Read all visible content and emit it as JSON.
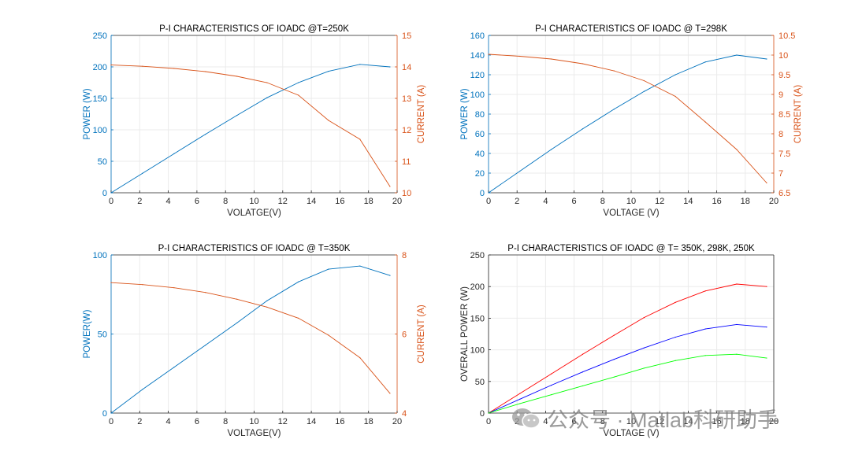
{
  "colors": {
    "left_axis": "#0072BD",
    "right_axis": "#D95319",
    "axis": "#262626",
    "grid": "#ebebeb",
    "series_250K": "#ff0000",
    "series_298K": "#0000ff",
    "series_350K": "#00ff00"
  },
  "watermark": {
    "text": "公众号 · Matlab科研助手",
    "icon": "wechat-icon"
  },
  "chart_data": [
    {
      "type": "line",
      "title": "P-I CHARACTERISTICS OF IOADC @T=250K",
      "xlabel": "VOLATGE(V)",
      "ylabel": "POWER (W)",
      "y2label": "CURRENT (A)",
      "xlim": [
        0,
        20
      ],
      "ylim": [
        0,
        250
      ],
      "y2lim": [
        10,
        15
      ],
      "xticks": [
        0,
        2,
        4,
        6,
        8,
        10,
        12,
        14,
        16,
        18,
        20
      ],
      "yticks": [
        0,
        50,
        100,
        150,
        200,
        250
      ],
      "y2ticks": [
        10,
        11,
        12,
        13,
        14,
        15
      ],
      "series": [
        {
          "name": "Power",
          "axis": "left",
          "x": [
            0,
            2.2,
            4.4,
            6.6,
            8.8,
            10.9,
            13.1,
            15.2,
            17.4,
            19.5
          ],
          "values": [
            0,
            31,
            62,
            93,
            123,
            151,
            175,
            193,
            204,
            200
          ]
        },
        {
          "name": "Current",
          "axis": "right",
          "x": [
            0,
            2.2,
            4.4,
            6.6,
            8.8,
            10.9,
            13.1,
            15.2,
            17.4,
            19.5
          ],
          "values": [
            14.06,
            14.02,
            13.95,
            13.85,
            13.7,
            13.5,
            13.1,
            12.3,
            11.7,
            10.2
          ]
        }
      ]
    },
    {
      "type": "line",
      "title": "P-I CHARACTERISTICS OF IOADC @ T=298K",
      "xlabel": "VOLTAGE (V)",
      "ylabel": "POWER (W)",
      "y2label": "CURRENT (A)",
      "xlim": [
        0,
        20
      ],
      "ylim": [
        0,
        160
      ],
      "y2lim": [
        6.5,
        10.5
      ],
      "xticks": [
        0,
        2,
        4,
        6,
        8,
        10,
        12,
        14,
        16,
        18,
        20
      ],
      "yticks": [
        0,
        20,
        40,
        60,
        80,
        100,
        120,
        140,
        160
      ],
      "y2ticks": [
        6.5,
        7,
        7.5,
        8,
        8.5,
        9,
        9.5,
        10,
        10.5
      ],
      "series": [
        {
          "name": "Power",
          "axis": "left",
          "x": [
            0,
            2.2,
            4.4,
            6.6,
            8.8,
            10.9,
            13.1,
            15.2,
            17.4,
            19.5
          ],
          "values": [
            0,
            22,
            44,
            65,
            85,
            103,
            120,
            133,
            140,
            136
          ]
        },
        {
          "name": "Current",
          "axis": "right",
          "x": [
            0,
            2.2,
            4.4,
            6.6,
            8.8,
            10.9,
            13.1,
            15.2,
            17.4,
            19.5
          ],
          "values": [
            10.02,
            9.97,
            9.9,
            9.78,
            9.6,
            9.35,
            8.95,
            8.3,
            7.6,
            6.75
          ]
        }
      ]
    },
    {
      "type": "line",
      "title": "P-I CHARACTERISTICS OF IOADC @ T=350K",
      "xlabel": "VOLTAGE(V)",
      "ylabel": "POWER(W)",
      "y2label": "CURRENT (A)",
      "xlim": [
        0,
        20
      ],
      "ylim": [
        0,
        100
      ],
      "y2lim": [
        4,
        8
      ],
      "xticks": [
        0,
        2,
        4,
        6,
        8,
        10,
        12,
        14,
        16,
        18,
        20
      ],
      "yticks": [
        0,
        50,
        100
      ],
      "y2ticks": [
        4,
        6,
        8
      ],
      "series": [
        {
          "name": "Power",
          "axis": "left",
          "x": [
            0,
            2.2,
            4.4,
            6.6,
            8.8,
            10.9,
            13.1,
            15.2,
            17.4,
            19.5
          ],
          "values": [
            0,
            15,
            29,
            43,
            57,
            71,
            83,
            91,
            93,
            87
          ]
        },
        {
          "name": "Current",
          "axis": "right",
          "x": [
            0,
            2.2,
            4.4,
            6.6,
            8.8,
            10.9,
            13.1,
            15.2,
            17.4,
            19.5
          ],
          "values": [
            7.3,
            7.25,
            7.17,
            7.05,
            6.88,
            6.68,
            6.4,
            5.97,
            5.4,
            4.5
          ]
        }
      ]
    },
    {
      "type": "line",
      "title": "P-I CHARACTERISTICS OF IOADC @ T= 350K, 298K, 250K",
      "xlabel": "VOLTAGE (V)",
      "ylabel": "OVERALL POWER (W)",
      "xlim": [
        0,
        20
      ],
      "ylim": [
        0,
        250
      ],
      "xticks": [
        0,
        2,
        4,
        6,
        8,
        10,
        12,
        14,
        16,
        18,
        20
      ],
      "yticks": [
        0,
        50,
        100,
        150,
        200,
        250
      ],
      "series": [
        {
          "name": "250K",
          "x": [
            0,
            2.2,
            4.4,
            6.6,
            8.8,
            10.9,
            13.1,
            15.2,
            17.4,
            19.5
          ],
          "values": [
            0,
            31,
            62,
            93,
            123,
            151,
            175,
            193,
            204,
            200
          ]
        },
        {
          "name": "298K",
          "x": [
            0,
            2.2,
            4.4,
            6.6,
            8.8,
            10.9,
            13.1,
            15.2,
            17.4,
            19.5
          ],
          "values": [
            0,
            22,
            44,
            65,
            85,
            103,
            120,
            133,
            140,
            136
          ]
        },
        {
          "name": "350K",
          "x": [
            0,
            2.2,
            4.4,
            6.6,
            8.8,
            10.9,
            13.1,
            15.2,
            17.4,
            19.5
          ],
          "values": [
            0,
            15,
            29,
            43,
            57,
            71,
            83,
            91,
            93,
            87
          ]
        }
      ]
    }
  ]
}
